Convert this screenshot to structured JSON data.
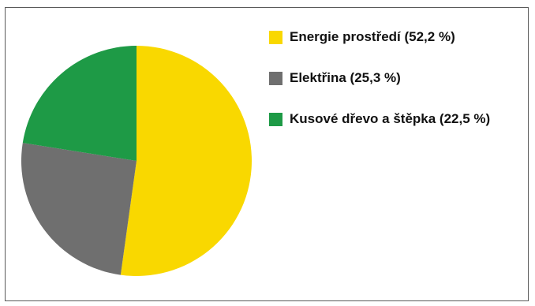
{
  "chart_data": {
    "type": "pie",
    "title": "",
    "series": [
      {
        "name": "Energie prostředí (52,2 %)",
        "value": 52.2,
        "color": "#F9D800"
      },
      {
        "name": "Elektřina (25,3 %)",
        "value": 25.3,
        "color": "#6F6F6F"
      },
      {
        "name": "Kusové dřevo a štěpka (22,5 %)",
        "value": 22.5,
        "color": "#1E9A46"
      }
    ],
    "legend": "right",
    "start_angle": "12 o'clock, clockwise"
  }
}
